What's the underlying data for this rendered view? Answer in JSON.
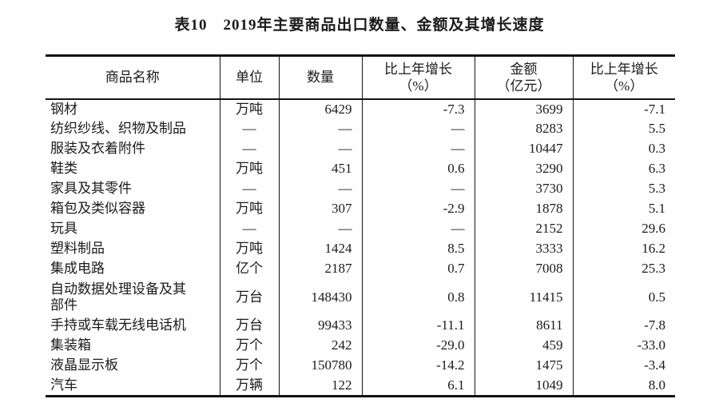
{
  "title": "表10　2019年主要商品出口数量、金额及其增长速度",
  "table": {
    "columns": [
      "商品名称",
      "单位",
      "数量",
      "比上年增长\n（%）",
      "金额\n（亿元）",
      "比上年增长\n（%）"
    ],
    "rows": [
      [
        "钢材",
        "万吨",
        "6429",
        "-7.3",
        "3699",
        "-7.1"
      ],
      [
        "纺织纱线、织物及制品",
        "—",
        "—",
        "—",
        "8283",
        "5.5"
      ],
      [
        "服装及衣着附件",
        "—",
        "—",
        "—",
        "10447",
        "0.3"
      ],
      [
        "鞋类",
        "万吨",
        "451",
        "0.6",
        "3290",
        "6.3"
      ],
      [
        "家具及其零件",
        "—",
        "—",
        "—",
        "3730",
        "5.3"
      ],
      [
        "箱包及类似容器",
        "万吨",
        "307",
        "-2.9",
        "1878",
        "5.1"
      ],
      [
        "玩具",
        "—",
        "—",
        "—",
        "2152",
        "29.6"
      ],
      [
        "塑料制品",
        "万吨",
        "1424",
        "8.5",
        "3333",
        "16.2"
      ],
      [
        "集成电路",
        "亿个",
        "2187",
        "0.7",
        "7008",
        "25.3"
      ],
      [
        "自动数据处理设备及其\n部件",
        "万台",
        "148430",
        "0.8",
        "11415",
        "0.5"
      ],
      [
        "手持或车载无线电话机",
        "万台",
        "99433",
        "-11.1",
        "8611",
        "-7.8"
      ],
      [
        "集装箱",
        "万个",
        "242",
        "-29.0",
        "459",
        "-33.0"
      ],
      [
        "液晶显示板",
        "万个",
        "150780",
        "-14.2",
        "1475",
        "-3.4"
      ],
      [
        "汽车",
        "万辆",
        "122",
        "6.1",
        "1049",
        "8.0"
      ]
    ],
    "colors": {
      "border": "#141414",
      "text": "#1b1b1b",
      "background": "#fefefe"
    }
  }
}
